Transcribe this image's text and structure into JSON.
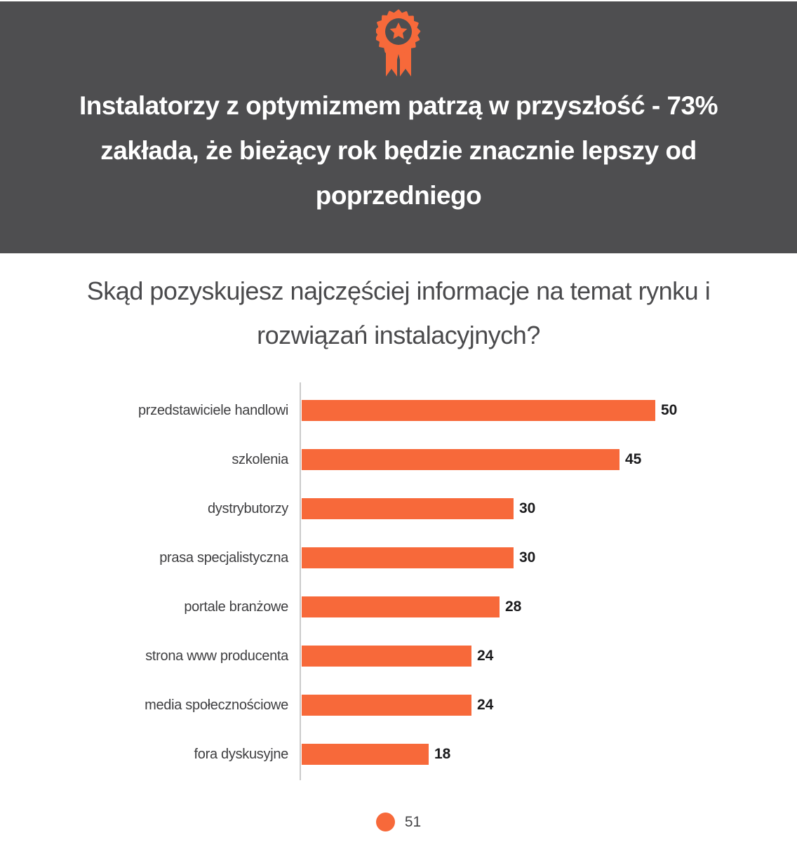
{
  "header": {
    "badge_icon": "award-ribbon-icon",
    "title": "Instalatorzy z optymizmem patrzą w przyszłość - 73% zakłada, że bieżący rok będzie znacznie lepszy od poprzedniego",
    "title_lines": [
      "Instalatorzy z optymizmem patrzą w przyszłość - 73%",
      "zakłada, że bieżący rok będzie znacznie lepszy od",
      "poprzedniego"
    ]
  },
  "question": "Skąd pozyskujesz najczęściej informacje na temat rynku i rozwiązań instalacyjnych?",
  "question_lines": [
    "Skąd pozyskujesz najczęściej informacje na temat rynku i",
    "rozwiązań instalacyjnych?"
  ],
  "legend": {
    "marker": "circle",
    "label": "51"
  },
  "colors": {
    "accent_orange": "#F7693A",
    "header_background": "#4E4E50",
    "axis_gray": "#CBCBCB"
  },
  "chart_data": {
    "type": "bar",
    "orientation": "horizontal",
    "title": "Skąd pozyskujesz najczęściej informacje na temat rynku i rozwiązań instalacyjnych?",
    "categories": [
      "przedstawiciele handlowi",
      "szkolenia",
      "dystrybutorzy",
      "prasa specjalistyczna",
      "portale branżowe",
      "strona www producenta",
      "media społecznościowe",
      "fora dyskusyjne"
    ],
    "values": [
      50,
      45,
      30,
      30,
      28,
      24,
      24,
      18
    ],
    "value_labels_shown": true,
    "x_axis_visible": false,
    "x_range_inferred": [
      0,
      50
    ],
    "grid": false,
    "bar_color": "#F7693A",
    "legend": {
      "label": "51",
      "marker": "circle",
      "position": "bottom-center"
    }
  }
}
